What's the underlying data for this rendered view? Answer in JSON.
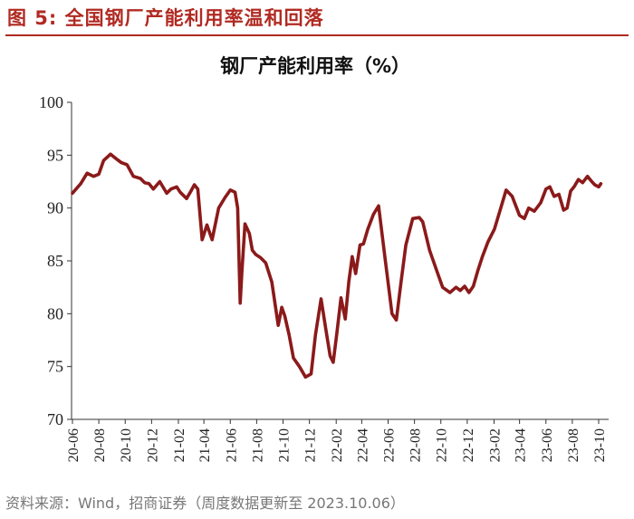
{
  "figure": {
    "title": "图 5:  全国钢厂产能利用率温和回落",
    "source": "资料来源：Wind，招商证券（周度数据更新至 2023.10.06）"
  },
  "colors": {
    "accent": "#b02a22",
    "line": "#8b1a1a"
  },
  "chart_data": {
    "type": "line",
    "title": "钢厂产能利用率（%）",
    "xlabel": "",
    "ylabel": "",
    "ylim": [
      70,
      100
    ],
    "yticks": [
      70,
      75,
      80,
      85,
      90,
      95,
      100
    ],
    "grid": false,
    "legend": "none",
    "xticks": [
      "20-06",
      "20-08",
      "20-10",
      "20-12",
      "21-02",
      "21-04",
      "21-06",
      "21-08",
      "21-10",
      "21-12",
      "22-02",
      "22-04",
      "22-06",
      "22-08",
      "22-10",
      "22-12",
      "23-02",
      "23-04",
      "23-06",
      "23-08",
      "23-10"
    ],
    "series": [
      {
        "name": "",
        "x": [
          "2020-06-01",
          "2020-06-20",
          "2020-07-05",
          "2020-07-20",
          "2020-08-01",
          "2020-08-12",
          "2020-08-28",
          "2020-09-12",
          "2020-09-22",
          "2020-10-05",
          "2020-10-20",
          "2020-11-05",
          "2020-11-15",
          "2020-11-25",
          "2020-12-05",
          "2020-12-20",
          "2021-01-05",
          "2021-01-15",
          "2021-01-28",
          "2021-02-05",
          "2021-02-20",
          "2021-03-02",
          "2021-03-10",
          "2021-03-18",
          "2021-03-28",
          "2021-04-08",
          "2021-04-20",
          "2021-05-05",
          "2021-05-20",
          "2021-06-01",
          "2021-06-12",
          "2021-06-18",
          "2021-06-24",
          "2021-06-28",
          "2021-07-05",
          "2021-07-15",
          "2021-07-22",
          "2021-07-30",
          "2021-08-10",
          "2021-08-22",
          "2021-09-05",
          "2021-09-20",
          "2021-09-28",
          "2021-10-05",
          "2021-10-15",
          "2021-10-25",
          "2021-11-08",
          "2021-11-22",
          "2021-12-05",
          "2021-12-15",
          "2021-12-28",
          "2022-01-08",
          "2022-01-18",
          "2022-01-25",
          "2022-02-02",
          "2022-02-12",
          "2022-02-22",
          "2022-03-02",
          "2022-03-10",
          "2022-03-18",
          "2022-03-28",
          "2022-04-05",
          "2022-04-15",
          "2022-04-28",
          "2022-05-10",
          "2022-05-25",
          "2022-06-10",
          "2022-06-20",
          "2022-07-01",
          "2022-07-12",
          "2022-07-28",
          "2022-08-12",
          "2022-08-20",
          "2022-09-05",
          "2022-09-22",
          "2022-10-05",
          "2022-10-22",
          "2022-11-05",
          "2022-11-15",
          "2022-11-25",
          "2022-12-05",
          "2022-12-15",
          "2022-12-25",
          "2023-01-05",
          "2023-01-18",
          "2023-02-02",
          "2023-02-15",
          "2023-03-01",
          "2023-03-15",
          "2023-04-01",
          "2023-04-12",
          "2023-04-22",
          "2023-05-05",
          "2023-05-20",
          "2023-06-01",
          "2023-06-10",
          "2023-06-20",
          "2023-07-01",
          "2023-07-12",
          "2023-07-20",
          "2023-07-28",
          "2023-08-05",
          "2023-08-15",
          "2023-08-25",
          "2023-09-05",
          "2023-09-15",
          "2023-09-22",
          "2023-10-01",
          "2023-10-06"
        ],
        "y": [
          91.4,
          92.3,
          93.3,
          93.0,
          93.2,
          94.5,
          95.1,
          94.6,
          94.3,
          94.1,
          93.0,
          92.8,
          92.4,
          92.3,
          91.8,
          92.5,
          91.4,
          91.8,
          92.0,
          91.5,
          90.9,
          91.6,
          92.2,
          91.8,
          87.0,
          88.4,
          87.0,
          90.0,
          91.0,
          91.7,
          91.5,
          90.0,
          81.0,
          84.0,
          88.5,
          87.6,
          86.0,
          85.6,
          85.3,
          84.8,
          83.0,
          78.9,
          80.6,
          79.8,
          78.0,
          75.8,
          75.0,
          74.0,
          74.3,
          78.0,
          81.4,
          78.5,
          76.0,
          75.4,
          78.0,
          81.5,
          79.5,
          83.0,
          85.4,
          83.8,
          86.5,
          86.6,
          88.0,
          89.4,
          90.2,
          85.2,
          80.0,
          79.4,
          83.0,
          86.5,
          89.0,
          89.1,
          88.7,
          86.0,
          84.0,
          82.5,
          82.0,
          82.5,
          82.2,
          82.6,
          82.0,
          82.6,
          84.0,
          85.4,
          86.8,
          88.0,
          89.8,
          91.7,
          91.1,
          89.3,
          89.0,
          90.0,
          89.7,
          90.5,
          91.8,
          92.0,
          91.1,
          91.3,
          89.8,
          90.0,
          91.6,
          92.0,
          92.7,
          92.4,
          93.0,
          92.5,
          92.2,
          92.0,
          92.3
        ]
      }
    ]
  }
}
